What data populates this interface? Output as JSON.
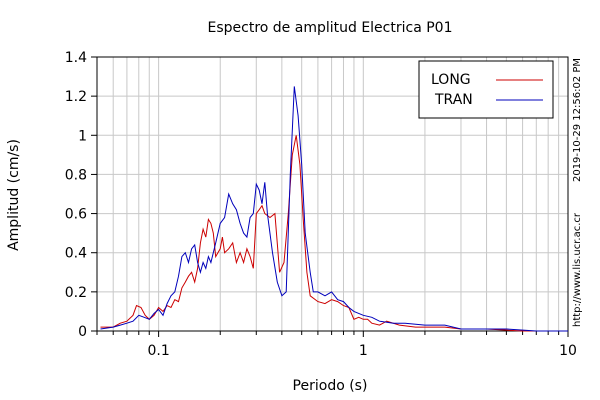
{
  "chart_data": {
    "type": "line",
    "title": "Espectro de amplitud Electrica P01",
    "xlabel": "Periodo (s)",
    "ylabel": "Amplitud (cm/s)",
    "x_scale": "log",
    "xlim": [
      0.05,
      10
    ],
    "ylim": [
      0,
      1.4
    ],
    "x_ticks": [
      0.1,
      1,
      10
    ],
    "x_tick_labels": [
      "0.1",
      "1",
      "10"
    ],
    "y_ticks": [
      0,
      0.2,
      0.4,
      0.6,
      0.8,
      1,
      1.2,
      1.4
    ],
    "y_tick_labels": [
      "0",
      "0.2",
      "0.4",
      "0.6",
      "0.8",
      "1",
      "1.2",
      "1.4"
    ],
    "grid": true,
    "legend_position": "top-right",
    "right_annotations": [
      "2019-10-29 12:56:02 PM",
      "http://www.lis.ucr.ac.cr"
    ],
    "series": [
      {
        "name": "LONG",
        "color": "#cc0000",
        "points": [
          [
            0.052,
            0.02
          ],
          [
            0.06,
            0.02
          ],
          [
            0.065,
            0.04
          ],
          [
            0.07,
            0.05
          ],
          [
            0.075,
            0.08
          ],
          [
            0.078,
            0.13
          ],
          [
            0.082,
            0.12
          ],
          [
            0.086,
            0.08
          ],
          [
            0.09,
            0.06
          ],
          [
            0.095,
            0.08
          ],
          [
            0.1,
            0.12
          ],
          [
            0.105,
            0.1
          ],
          [
            0.11,
            0.13
          ],
          [
            0.115,
            0.12
          ],
          [
            0.12,
            0.16
          ],
          [
            0.125,
            0.15
          ],
          [
            0.13,
            0.22
          ],
          [
            0.135,
            0.25
          ],
          [
            0.14,
            0.28
          ],
          [
            0.145,
            0.3
          ],
          [
            0.15,
            0.25
          ],
          [
            0.155,
            0.32
          ],
          [
            0.16,
            0.45
          ],
          [
            0.165,
            0.52
          ],
          [
            0.17,
            0.48
          ],
          [
            0.175,
            0.57
          ],
          [
            0.18,
            0.55
          ],
          [
            0.185,
            0.5
          ],
          [
            0.19,
            0.38
          ],
          [
            0.2,
            0.42
          ],
          [
            0.205,
            0.48
          ],
          [
            0.21,
            0.4
          ],
          [
            0.22,
            0.42
          ],
          [
            0.23,
            0.45
          ],
          [
            0.24,
            0.35
          ],
          [
            0.25,
            0.4
          ],
          [
            0.26,
            0.35
          ],
          [
            0.27,
            0.42
          ],
          [
            0.28,
            0.38
          ],
          [
            0.29,
            0.32
          ],
          [
            0.3,
            0.6
          ],
          [
            0.31,
            0.62
          ],
          [
            0.32,
            0.64
          ],
          [
            0.33,
            0.6
          ],
          [
            0.35,
            0.58
          ],
          [
            0.37,
            0.6
          ],
          [
            0.39,
            0.3
          ],
          [
            0.41,
            0.35
          ],
          [
            0.43,
            0.6
          ],
          [
            0.45,
            0.9
          ],
          [
            0.47,
            1.0
          ],
          [
            0.49,
            0.85
          ],
          [
            0.51,
            0.55
          ],
          [
            0.53,
            0.3
          ],
          [
            0.55,
            0.18
          ],
          [
            0.6,
            0.15
          ],
          [
            0.65,
            0.14
          ],
          [
            0.7,
            0.16
          ],
          [
            0.75,
            0.15
          ],
          [
            0.8,
            0.13
          ],
          [
            0.85,
            0.12
          ],
          [
            0.9,
            0.06
          ],
          [
            0.95,
            0.07
          ],
          [
            1.0,
            0.06
          ],
          [
            1.05,
            0.06
          ],
          [
            1.1,
            0.04
          ],
          [
            1.2,
            0.03
          ],
          [
            1.3,
            0.05
          ],
          [
            1.5,
            0.03
          ],
          [
            1.8,
            0.02
          ],
          [
            2.0,
            0.02
          ],
          [
            2.5,
            0.02
          ],
          [
            3.0,
            0.01
          ],
          [
            4.0,
            0.01
          ],
          [
            6.0,
            0.0
          ],
          [
            10.0,
            0.0
          ]
        ]
      },
      {
        "name": "TRAN",
        "color": "#0000bb",
        "points": [
          [
            0.052,
            0.01
          ],
          [
            0.06,
            0.02
          ],
          [
            0.065,
            0.03
          ],
          [
            0.07,
            0.04
          ],
          [
            0.075,
            0.05
          ],
          [
            0.08,
            0.08
          ],
          [
            0.085,
            0.07
          ],
          [
            0.09,
            0.06
          ],
          [
            0.095,
            0.09
          ],
          [
            0.1,
            0.11
          ],
          [
            0.105,
            0.08
          ],
          [
            0.11,
            0.14
          ],
          [
            0.115,
            0.18
          ],
          [
            0.12,
            0.2
          ],
          [
            0.125,
            0.28
          ],
          [
            0.13,
            0.38
          ],
          [
            0.135,
            0.4
          ],
          [
            0.14,
            0.35
          ],
          [
            0.145,
            0.42
          ],
          [
            0.15,
            0.44
          ],
          [
            0.155,
            0.35
          ],
          [
            0.16,
            0.3
          ],
          [
            0.165,
            0.35
          ],
          [
            0.17,
            0.32
          ],
          [
            0.175,
            0.38
          ],
          [
            0.18,
            0.35
          ],
          [
            0.19,
            0.45
          ],
          [
            0.2,
            0.55
          ],
          [
            0.21,
            0.58
          ],
          [
            0.22,
            0.7
          ],
          [
            0.23,
            0.65
          ],
          [
            0.24,
            0.62
          ],
          [
            0.25,
            0.55
          ],
          [
            0.26,
            0.5
          ],
          [
            0.27,
            0.48
          ],
          [
            0.28,
            0.58
          ],
          [
            0.29,
            0.6
          ],
          [
            0.3,
            0.75
          ],
          [
            0.31,
            0.72
          ],
          [
            0.32,
            0.65
          ],
          [
            0.33,
            0.76
          ],
          [
            0.34,
            0.6
          ],
          [
            0.36,
            0.4
          ],
          [
            0.38,
            0.25
          ],
          [
            0.4,
            0.18
          ],
          [
            0.42,
            0.2
          ],
          [
            0.44,
            0.8
          ],
          [
            0.46,
            1.25
          ],
          [
            0.48,
            1.1
          ],
          [
            0.5,
            0.85
          ],
          [
            0.52,
            0.5
          ],
          [
            0.55,
            0.3
          ],
          [
            0.57,
            0.2
          ],
          [
            0.6,
            0.2
          ],
          [
            0.65,
            0.18
          ],
          [
            0.7,
            0.2
          ],
          [
            0.75,
            0.16
          ],
          [
            0.8,
            0.15
          ],
          [
            0.85,
            0.12
          ],
          [
            0.9,
            0.1
          ],
          [
            1.0,
            0.08
          ],
          [
            1.1,
            0.07
          ],
          [
            1.2,
            0.05
          ],
          [
            1.4,
            0.04
          ],
          [
            1.6,
            0.04
          ],
          [
            2.0,
            0.03
          ],
          [
            2.5,
            0.03
          ],
          [
            3.0,
            0.01
          ],
          [
            4.0,
            0.01
          ],
          [
            5.0,
            0.01
          ],
          [
            7.0,
            0.0
          ],
          [
            10.0,
            0.0
          ]
        ]
      }
    ]
  }
}
